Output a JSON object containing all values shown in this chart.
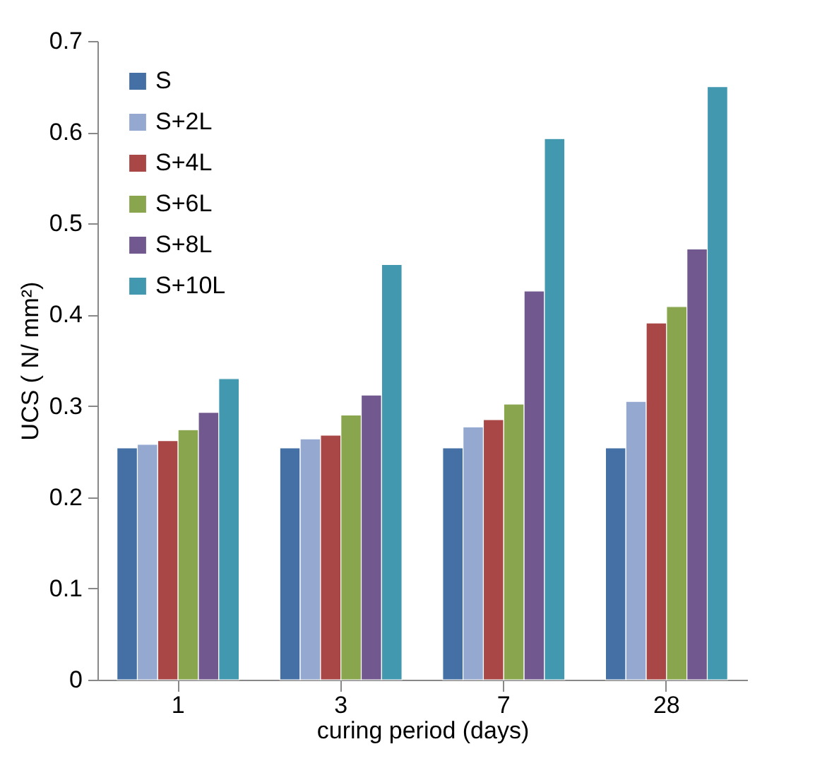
{
  "chart_data": {
    "type": "bar",
    "xlabel": "curing period (days)",
    "ylabel": "UCS ( N/ mm²)",
    "categories": [
      "1",
      "3",
      "7",
      "28"
    ],
    "series": [
      {
        "name": "S",
        "color": "#4470a6",
        "values": [
          0.254,
          0.254,
          0.254,
          0.254
        ]
      },
      {
        "name": "S+2L",
        "color": "#95a9d0",
        "values": [
          0.258,
          0.264,
          0.277,
          0.305
        ]
      },
      {
        "name": "S+4L",
        "color": "#a84745",
        "values": [
          0.262,
          0.268,
          0.285,
          0.391
        ]
      },
      {
        "name": "S+6L",
        "color": "#89a54e",
        "values": [
          0.274,
          0.29,
          0.302,
          0.409
        ]
      },
      {
        "name": "S+8L",
        "color": "#71588f",
        "values": [
          0.293,
          0.312,
          0.426,
          0.472
        ]
      },
      {
        "name": "S+10L",
        "color": "#4198af",
        "values": [
          0.33,
          0.455,
          0.593,
          0.65
        ]
      }
    ],
    "ylim": [
      0,
      0.7
    ],
    "yticks": [
      0,
      0.1,
      0.2,
      0.3,
      0.4,
      0.5,
      0.6,
      0.7
    ],
    "grid": false,
    "legend": "top left"
  }
}
